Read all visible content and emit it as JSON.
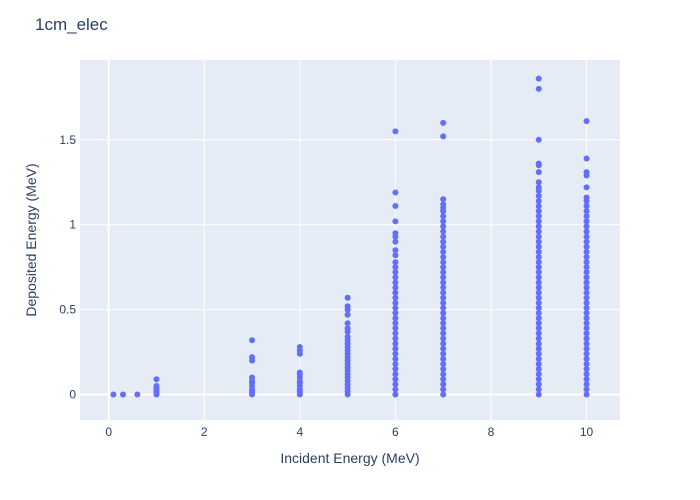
{
  "chart_data": {
    "type": "scatter",
    "title": "1cm_elec",
    "xlabel": "Incident Energy (MeV)",
    "ylabel": "Deposited Energy (MeV)",
    "xlim": [
      -0.6,
      10.7
    ],
    "ylim": [
      -0.15,
      1.97
    ],
    "x_ticks": [
      0,
      2,
      4,
      6,
      8,
      10
    ],
    "x_tick_labels": [
      "0",
      "2",
      "4",
      "6",
      "8",
      "10"
    ],
    "y_ticks": [
      0,
      0.5,
      1,
      1.5
    ],
    "y_tick_labels": [
      "0",
      "0.5",
      "1",
      "1.5"
    ],
    "grid": true,
    "legend": "none",
    "colors": {
      "marker": "#636efa",
      "plot_bg": "#e5ecf6",
      "text": "#2a3f5f"
    },
    "series": [
      {
        "points": [
          [
            0.1,
            0
          ],
          [
            0.3,
            0
          ],
          [
            0.6,
            0
          ],
          [
            1,
            0
          ],
          [
            1,
            0.01
          ],
          [
            1,
            0.02
          ],
          [
            1,
            0.03
          ],
          [
            1,
            0.04
          ],
          [
            1,
            0.05
          ],
          [
            1,
            0.09
          ],
          [
            3,
            0
          ],
          [
            3,
            0.01
          ],
          [
            3,
            0.02
          ],
          [
            3,
            0.03
          ],
          [
            3,
            0.05
          ],
          [
            3,
            0.07
          ],
          [
            3,
            0.08
          ],
          [
            3,
            0.1
          ],
          [
            3,
            0.2
          ],
          [
            3,
            0.22
          ],
          [
            3,
            0.32
          ],
          [
            4,
            0
          ],
          [
            4,
            0.01
          ],
          [
            4,
            0.02
          ],
          [
            4,
            0.03
          ],
          [
            4,
            0.05
          ],
          [
            4,
            0.07
          ],
          [
            4,
            0.08
          ],
          [
            4,
            0.1
          ],
          [
            4,
            0.12
          ],
          [
            4,
            0.13
          ],
          [
            4,
            0.24
          ],
          [
            4,
            0.26
          ],
          [
            4,
            0.28
          ],
          [
            5,
            0
          ],
          [
            5,
            0.02
          ],
          [
            5,
            0.04
          ],
          [
            5,
            0.06
          ],
          [
            5,
            0.08
          ],
          [
            5,
            0.1
          ],
          [
            5,
            0.12
          ],
          [
            5,
            0.14
          ],
          [
            5,
            0.16
          ],
          [
            5,
            0.18
          ],
          [
            5,
            0.2
          ],
          [
            5,
            0.22
          ],
          [
            5,
            0.24
          ],
          [
            5,
            0.26
          ],
          [
            5,
            0.28
          ],
          [
            5,
            0.3
          ],
          [
            5,
            0.32
          ],
          [
            5,
            0.34
          ],
          [
            5,
            0.37
          ],
          [
            5,
            0.39
          ],
          [
            5,
            0.42
          ],
          [
            5,
            0.47
          ],
          [
            5,
            0.5
          ],
          [
            5,
            0.52
          ],
          [
            5,
            0.57
          ],
          [
            6,
            0
          ],
          [
            6,
            0.03
          ],
          [
            6,
            0.06
          ],
          [
            6,
            0.09
          ],
          [
            6,
            0.12
          ],
          [
            6,
            0.15
          ],
          [
            6,
            0.18
          ],
          [
            6,
            0.21
          ],
          [
            6,
            0.24
          ],
          [
            6,
            0.27
          ],
          [
            6,
            0.3
          ],
          [
            6,
            0.33
          ],
          [
            6,
            0.36
          ],
          [
            6,
            0.39
          ],
          [
            6,
            0.42
          ],
          [
            6,
            0.45
          ],
          [
            6,
            0.48
          ],
          [
            6,
            0.51
          ],
          [
            6,
            0.54
          ],
          [
            6,
            0.57
          ],
          [
            6,
            0.6
          ],
          [
            6,
            0.63
          ],
          [
            6,
            0.66
          ],
          [
            6,
            0.69
          ],
          [
            6,
            0.72
          ],
          [
            6,
            0.75
          ],
          [
            6,
            0.78
          ],
          [
            6,
            0.82
          ],
          [
            6,
            0.85
          ],
          [
            6,
            0.9
          ],
          [
            6,
            0.93
          ],
          [
            6,
            0.95
          ],
          [
            6,
            1.02
          ],
          [
            6,
            1.11
          ],
          [
            6,
            1.19
          ],
          [
            6,
            1.55
          ],
          [
            7,
            0
          ],
          [
            7,
            0.03
          ],
          [
            7,
            0.06
          ],
          [
            7,
            0.09
          ],
          [
            7,
            0.12
          ],
          [
            7,
            0.15
          ],
          [
            7,
            0.18
          ],
          [
            7,
            0.21
          ],
          [
            7,
            0.24
          ],
          [
            7,
            0.27
          ],
          [
            7,
            0.3
          ],
          [
            7,
            0.33
          ],
          [
            7,
            0.36
          ],
          [
            7,
            0.39
          ],
          [
            7,
            0.42
          ],
          [
            7,
            0.45
          ],
          [
            7,
            0.48
          ],
          [
            7,
            0.51
          ],
          [
            7,
            0.54
          ],
          [
            7,
            0.57
          ],
          [
            7,
            0.6
          ],
          [
            7,
            0.63
          ],
          [
            7,
            0.66
          ],
          [
            7,
            0.69
          ],
          [
            7,
            0.72
          ],
          [
            7,
            0.75
          ],
          [
            7,
            0.78
          ],
          [
            7,
            0.81
          ],
          [
            7,
            0.84
          ],
          [
            7,
            0.87
          ],
          [
            7,
            0.9
          ],
          [
            7,
            0.93
          ],
          [
            7,
            0.96
          ],
          [
            7,
            0.99
          ],
          [
            7,
            1.02
          ],
          [
            7,
            1.05
          ],
          [
            7,
            1.08
          ],
          [
            7,
            1.1
          ],
          [
            7,
            1.12
          ],
          [
            7,
            1.15
          ],
          [
            7,
            1.52
          ],
          [
            7,
            1.6
          ],
          [
            9,
            0
          ],
          [
            9,
            0.03
          ],
          [
            9,
            0.06
          ],
          [
            9,
            0.09
          ],
          [
            9,
            0.12
          ],
          [
            9,
            0.15
          ],
          [
            9,
            0.18
          ],
          [
            9,
            0.21
          ],
          [
            9,
            0.24
          ],
          [
            9,
            0.27
          ],
          [
            9,
            0.3
          ],
          [
            9,
            0.33
          ],
          [
            9,
            0.36
          ],
          [
            9,
            0.39
          ],
          [
            9,
            0.42
          ],
          [
            9,
            0.45
          ],
          [
            9,
            0.48
          ],
          [
            9,
            0.51
          ],
          [
            9,
            0.54
          ],
          [
            9,
            0.57
          ],
          [
            9,
            0.6
          ],
          [
            9,
            0.63
          ],
          [
            9,
            0.66
          ],
          [
            9,
            0.69
          ],
          [
            9,
            0.72
          ],
          [
            9,
            0.75
          ],
          [
            9,
            0.78
          ],
          [
            9,
            0.81
          ],
          [
            9,
            0.84
          ],
          [
            9,
            0.87
          ],
          [
            9,
            0.9
          ],
          [
            9,
            0.93
          ],
          [
            9,
            0.96
          ],
          [
            9,
            0.99
          ],
          [
            9,
            1.02
          ],
          [
            9,
            1.05
          ],
          [
            9,
            1.08
          ],
          [
            9,
            1.11
          ],
          [
            9,
            1.14
          ],
          [
            9,
            1.17
          ],
          [
            9,
            1.2
          ],
          [
            9,
            1.22
          ],
          [
            9,
            1.25
          ],
          [
            9,
            1.31
          ],
          [
            9,
            1.35
          ],
          [
            9,
            1.36
          ],
          [
            9,
            1.5
          ],
          [
            9,
            1.8
          ],
          [
            9,
            1.86
          ],
          [
            10,
            0
          ],
          [
            10,
            0.03
          ],
          [
            10,
            0.06
          ],
          [
            10,
            0.09
          ],
          [
            10,
            0.12
          ],
          [
            10,
            0.15
          ],
          [
            10,
            0.18
          ],
          [
            10,
            0.21
          ],
          [
            10,
            0.24
          ],
          [
            10,
            0.27
          ],
          [
            10,
            0.3
          ],
          [
            10,
            0.33
          ],
          [
            10,
            0.36
          ],
          [
            10,
            0.39
          ],
          [
            10,
            0.42
          ],
          [
            10,
            0.45
          ],
          [
            10,
            0.48
          ],
          [
            10,
            0.51
          ],
          [
            10,
            0.54
          ],
          [
            10,
            0.57
          ],
          [
            10,
            0.6
          ],
          [
            10,
            0.63
          ],
          [
            10,
            0.66
          ],
          [
            10,
            0.69
          ],
          [
            10,
            0.72
          ],
          [
            10,
            0.75
          ],
          [
            10,
            0.78
          ],
          [
            10,
            0.81
          ],
          [
            10,
            0.84
          ],
          [
            10,
            0.87
          ],
          [
            10,
            0.9
          ],
          [
            10,
            0.93
          ],
          [
            10,
            0.96
          ],
          [
            10,
            0.99
          ],
          [
            10,
            1.02
          ],
          [
            10,
            1.05
          ],
          [
            10,
            1.08
          ],
          [
            10,
            1.11
          ],
          [
            10,
            1.14
          ],
          [
            10,
            1.16
          ],
          [
            10,
            1.22
          ],
          [
            10,
            1.29
          ],
          [
            10,
            1.31
          ],
          [
            10,
            1.39
          ],
          [
            10,
            1.61
          ]
        ]
      }
    ]
  }
}
